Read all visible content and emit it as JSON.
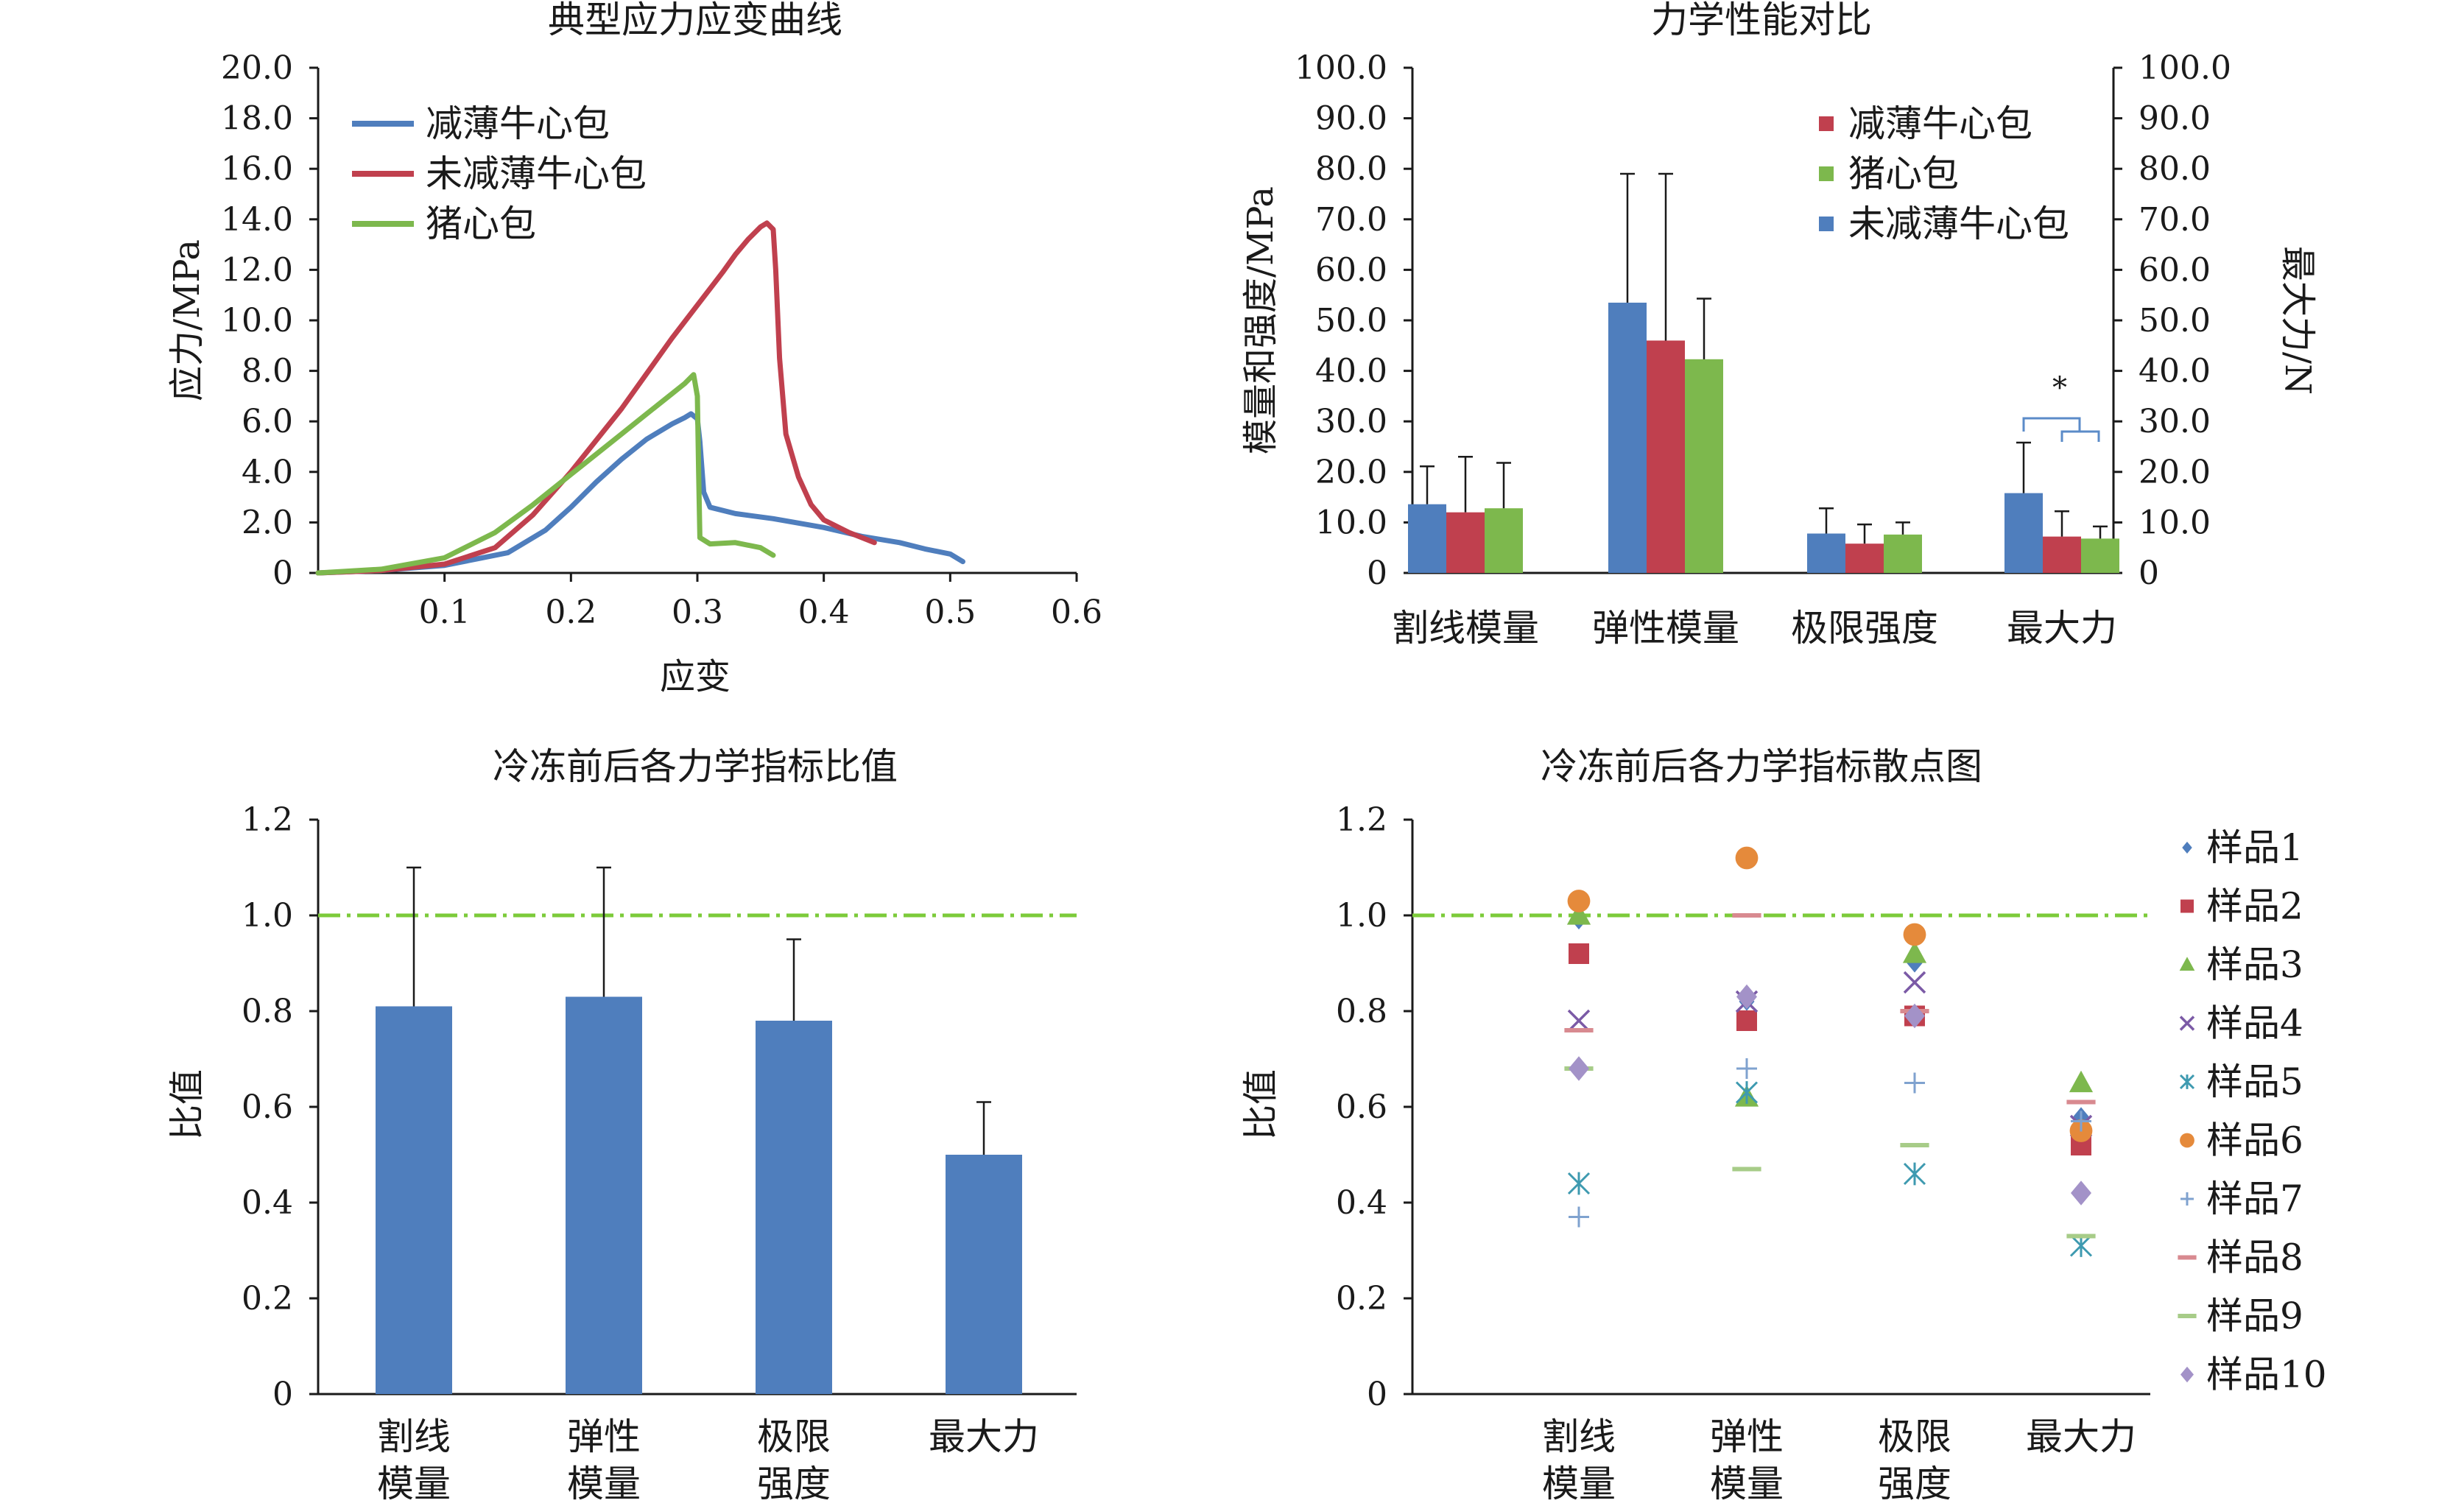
{
  "colors": {
    "blue": "#4F7EBD",
    "red": "#C0404E",
    "green": "#7DB84D",
    "axis": "#1a1a1a",
    "refline": "#7CCB3A"
  },
  "chart_data": [
    {
      "type": "line",
      "title": "典型应力应变曲线",
      "xlabel": "应变",
      "ylabel": "应力/MPa",
      "xlim": [
        0,
        0.6
      ],
      "ylim": [
        0,
        20
      ],
      "xticks": [
        "0.1",
        "0.2",
        "0.3",
        "0.4",
        "0.5",
        "0.6"
      ],
      "yticks": [
        "0",
        "2.0",
        "4.0",
        "6.0",
        "8.0",
        "10.0",
        "12.0",
        "14.0",
        "16.0",
        "18.0",
        "20.0"
      ],
      "legend_position": "top-left",
      "series": [
        {
          "name": "减薄牛心包",
          "color": "#4F7EBD",
          "points": [
            [
              0,
              0
            ],
            [
              0.05,
              0.1
            ],
            [
              0.1,
              0.3
            ],
            [
              0.15,
              0.8
            ],
            [
              0.18,
              1.7
            ],
            [
              0.2,
              2.6
            ],
            [
              0.22,
              3.6
            ],
            [
              0.24,
              4.5
            ],
            [
              0.26,
              5.3
            ],
            [
              0.28,
              5.9
            ],
            [
              0.29,
              6.15
            ],
            [
              0.295,
              6.3
            ],
            [
              0.3,
              6.1
            ],
            [
              0.302,
              5.2
            ],
            [
              0.305,
              3.2
            ],
            [
              0.31,
              2.6
            ],
            [
              0.33,
              2.35
            ],
            [
              0.36,
              2.15
            ],
            [
              0.4,
              1.8
            ],
            [
              0.43,
              1.45
            ],
            [
              0.46,
              1.2
            ],
            [
              0.48,
              0.95
            ],
            [
              0.5,
              0.75
            ],
            [
              0.51,
              0.45
            ]
          ]
        },
        {
          "name": "未减薄牛心包",
          "color": "#C0404E",
          "points": [
            [
              0,
              0
            ],
            [
              0.05,
              0.1
            ],
            [
              0.1,
              0.35
            ],
            [
              0.14,
              1.0
            ],
            [
              0.17,
              2.3
            ],
            [
              0.2,
              4.0
            ],
            [
              0.24,
              6.5
            ],
            [
              0.28,
              9.3
            ],
            [
              0.3,
              10.6
            ],
            [
              0.32,
              11.9
            ],
            [
              0.33,
              12.6
            ],
            [
              0.34,
              13.2
            ],
            [
              0.35,
              13.7
            ],
            [
              0.355,
              13.85
            ],
            [
              0.36,
              13.6
            ],
            [
              0.362,
              12.0
            ],
            [
              0.365,
              8.5
            ],
            [
              0.37,
              5.5
            ],
            [
              0.38,
              3.8
            ],
            [
              0.39,
              2.7
            ],
            [
              0.4,
              2.1
            ],
            [
              0.42,
              1.6
            ],
            [
              0.44,
              1.2
            ]
          ]
        },
        {
          "name": "猪心包",
          "color": "#7DB84D",
          "points": [
            [
              0,
              0
            ],
            [
              0.05,
              0.15
            ],
            [
              0.1,
              0.6
            ],
            [
              0.14,
              1.6
            ],
            [
              0.17,
              2.7
            ],
            [
              0.2,
              3.9
            ],
            [
              0.22,
              4.7
            ],
            [
              0.24,
              5.5
            ],
            [
              0.26,
              6.3
            ],
            [
              0.28,
              7.1
            ],
            [
              0.29,
              7.5
            ],
            [
              0.297,
              7.85
            ],
            [
              0.3,
              7.0
            ],
            [
              0.301,
              4.0
            ],
            [
              0.302,
              1.4
            ],
            [
              0.31,
              1.15
            ],
            [
              0.33,
              1.2
            ],
            [
              0.35,
              1.0
            ],
            [
              0.36,
              0.7
            ]
          ]
        }
      ]
    },
    {
      "type": "bar",
      "title": "力学性能对比",
      "ylabel": "模量和强度/MPa",
      "ylabel_right": "最大力/N",
      "ylim": [
        0,
        100
      ],
      "yticks": [
        "0",
        "10.0",
        "20.0",
        "30.0",
        "40.0",
        "50.0",
        "60.0",
        "70.0",
        "80.0",
        "90.0",
        "100.0"
      ],
      "yticks_right": [
        "0",
        "10.0",
        "20.0",
        "30.0",
        "40.0",
        "50.0",
        "60.0",
        "70.0",
        "80.0",
        "90.0",
        "100.0"
      ],
      "categories": [
        "割线模量",
        "弹性模量",
        "极限强度",
        "最大力"
      ],
      "legend_position": "top-right",
      "legend_order": [
        "减薄牛心包",
        "猪心包",
        "未减薄牛心包"
      ],
      "annotation": "*",
      "series": [
        {
          "name": "未减薄牛心包",
          "color": "#4F7EBD",
          "values": [
            13.6,
            53.5,
            7.8,
            15.8
          ],
          "errors": [
            7.5,
            25.5,
            5.0,
            10.0
          ]
        },
        {
          "name": "减薄牛心包",
          "color": "#C0404E",
          "values": [
            12.0,
            46.0,
            5.8,
            7.2
          ],
          "errors": [
            11.0,
            33.0,
            3.8,
            5.0
          ]
        },
        {
          "name": "猪心包",
          "color": "#7DB84D",
          "values": [
            12.8,
            42.3,
            7.6,
            6.8
          ],
          "errors": [
            9.0,
            12.0,
            2.4,
            2.4
          ]
        }
      ]
    },
    {
      "type": "bar",
      "title": "冷冻前后各力学指标比值",
      "ylabel": "比值",
      "ylim": [
        0,
        1.2
      ],
      "yticks": [
        "0",
        "0.2",
        "0.4",
        "0.6",
        "0.8",
        "1.0",
        "1.2"
      ],
      "categories": [
        [
          "割线",
          "模量"
        ],
        [
          "弹性",
          "模量"
        ],
        [
          "极限",
          "强度"
        ],
        [
          "最大力"
        ]
      ],
      "reference_line": 1.0,
      "series": [
        {
          "color": "#4F7EBD",
          "values": [
            0.81,
            0.83,
            0.78,
            0.5
          ],
          "errors": [
            0.29,
            0.27,
            0.17,
            0.11
          ]
        }
      ]
    },
    {
      "type": "scatter",
      "title": "冷冻前后各力学指标散点图",
      "ylabel": "比值",
      "ylim": [
        0,
        1.2
      ],
      "yticks": [
        "0",
        "0.2",
        "0.4",
        "0.6",
        "0.8",
        "1.0",
        "1.2"
      ],
      "categories": [
        [
          "割线",
          "模量"
        ],
        [
          "弹性",
          "模量"
        ],
        [
          "极限",
          "强度"
        ],
        [
          "最大力"
        ]
      ],
      "reference_line": 1.0,
      "legend_position": "right",
      "series": [
        {
          "name": "样品1",
          "marker": "diamond-small",
          "color": "#4F7EBD",
          "values": [
            0.99,
            0.82,
            0.9,
            0.58
          ]
        },
        {
          "name": "样品2",
          "marker": "square",
          "color": "#C0404E",
          "values": [
            0.92,
            0.78,
            0.79,
            0.52
          ]
        },
        {
          "name": "样品3",
          "marker": "triangle",
          "color": "#7DB84D",
          "values": [
            1.0,
            0.62,
            0.92,
            0.65
          ]
        },
        {
          "name": "样品4",
          "marker": "x",
          "color": "#7B5AA6",
          "values": [
            0.78,
            0.82,
            0.86,
            0.56
          ]
        },
        {
          "name": "样品5",
          "marker": "star",
          "color": "#3E9AB0",
          "values": [
            0.44,
            0.63,
            0.46,
            0.31
          ]
        },
        {
          "name": "样品6",
          "marker": "circle",
          "color": "#E58A3B",
          "values": [
            1.03,
            1.12,
            0.96,
            0.55
          ]
        },
        {
          "name": "样品7",
          "marker": "plus",
          "color": "#7FA2CF",
          "values": [
            0.37,
            0.68,
            0.65,
            0.57
          ]
        },
        {
          "name": "样品8",
          "marker": "dash",
          "color": "#D88A90",
          "values": [
            0.76,
            1.0,
            0.8,
            0.61
          ]
        },
        {
          "name": "样品9",
          "marker": "dash",
          "color": "#A7CC88",
          "values": [
            0.68,
            0.47,
            0.52,
            0.33
          ]
        },
        {
          "name": "样品10",
          "marker": "diamond",
          "color": "#A392C8",
          "values": [
            0.68,
            0.83,
            0.79,
            0.42
          ]
        }
      ]
    }
  ]
}
